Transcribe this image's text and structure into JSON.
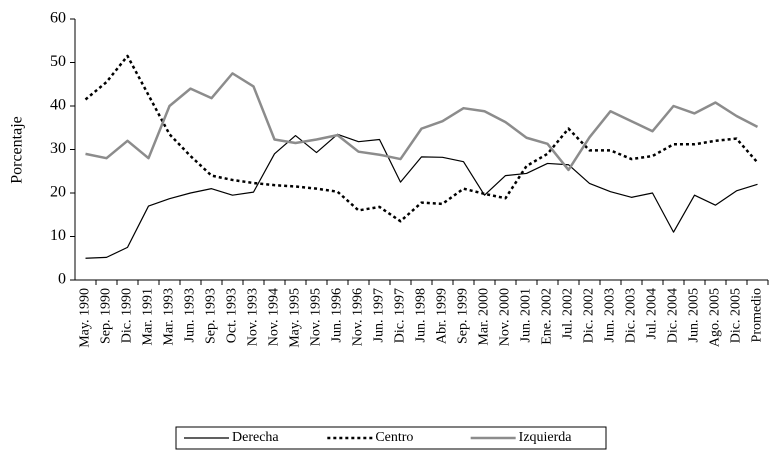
{
  "chart_data": {
    "type": "line",
    "y_label": "Porcentaje",
    "categories": [
      "May. 1990",
      "Sep. 1990",
      "Dic. 1990",
      "Mar. 1991",
      "Mar. 1993",
      "Jun. 1993",
      "Sep. 1993",
      "Oct. 1993",
      "Nov. 1993",
      "Nov. 1994",
      "May. 1995",
      "Nov. 1995",
      "Jun. 1996",
      "Nov. 1996",
      "Jun. 1997",
      "Dic. 1997",
      "Jun. 1998",
      "Abr. 1999",
      "Sep. 1999",
      "Mar. 2000",
      "Nov. 2000",
      "Jun. 2001",
      "Ene. 2002",
      "Jul. 2002",
      "Dic. 2002",
      "Jun. 2003",
      "Dic. 2003",
      "Jul. 2004",
      "Dic. 2004",
      "Jun. 2005",
      "Ago. 2005",
      "Dic. 2005",
      "Promedio"
    ],
    "series": [
      {
        "name": "Derecha",
        "color": "#000000",
        "style": "solid",
        "values": [
          5,
          5.2,
          7.5,
          17,
          18.7,
          20,
          21,
          19.5,
          20.2,
          29,
          33.2,
          29.3,
          33.5,
          31.8,
          32.3,
          22.5,
          28.3,
          28.2,
          27.2,
          19.5,
          24,
          24.5,
          26.8,
          26.5,
          22.2,
          20.3,
          19,
          20,
          11,
          19.5,
          17.2,
          20.5,
          22
        ]
      },
      {
        "name": "Centro",
        "color": "#000000",
        "style": "dotted",
        "values": [
          41.5,
          45.5,
          51.5,
          42.5,
          33.5,
          28.5,
          24,
          23,
          22.3,
          21.8,
          21.5,
          21,
          20.3,
          16,
          16.8,
          13.5,
          17.8,
          17.5,
          21,
          19.8,
          18.8,
          26.2,
          29,
          34.8,
          29.8,
          29.8,
          27.8,
          28.5,
          31.2,
          31.2,
          32,
          32.5,
          27
        ]
      },
      {
        "name": "Izquierda",
        "color": "#8c8c8c",
        "style": "thick",
        "values": [
          29,
          28,
          32,
          28,
          40,
          44,
          41.8,
          47.5,
          44.5,
          32.3,
          31.5,
          32.3,
          33.3,
          29.5,
          28.8,
          27.8,
          34.8,
          36.5,
          39.5,
          38.8,
          36.3,
          32.7,
          31.3,
          25.3,
          32.8,
          38.8,
          36.5,
          34.2,
          40,
          38.3,
          40.8,
          37.7,
          35.2
        ]
      }
    ],
    "ylim": [
      0,
      60
    ],
    "yticks": [
      0,
      10,
      20,
      30,
      40,
      50,
      60
    ],
    "grid": false,
    "legend": "bottom"
  }
}
